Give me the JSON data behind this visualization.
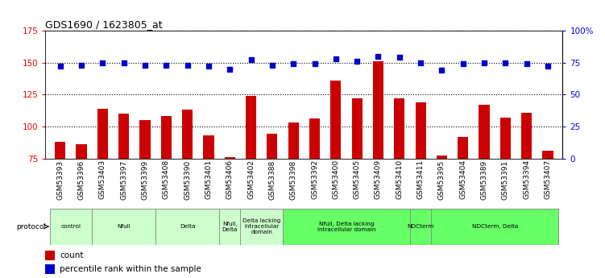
{
  "title": "GDS1690 / 1623805_at",
  "samples": [
    "GSM53393",
    "GSM53396",
    "GSM53403",
    "GSM53397",
    "GSM53399",
    "GSM53408",
    "GSM53390",
    "GSM53401",
    "GSM53406",
    "GSM53402",
    "GSM53388",
    "GSM53398",
    "GSM53392",
    "GSM53400",
    "GSM53405",
    "GSM53409",
    "GSM53410",
    "GSM53411",
    "GSM53395",
    "GSM53404",
    "GSM53389",
    "GSM53391",
    "GSM53394",
    "GSM53407"
  ],
  "counts": [
    88,
    86,
    114,
    110,
    105,
    108,
    113,
    93,
    76,
    124,
    94,
    103,
    106,
    136,
    122,
    151,
    122,
    119,
    77,
    92,
    117,
    107,
    111,
    81
  ],
  "percentiles": [
    72,
    73,
    75,
    75,
    73,
    73,
    73,
    72,
    70,
    77,
    73,
    74,
    74,
    78,
    76,
    80,
    79,
    75,
    69,
    74,
    75,
    75,
    74,
    72
  ],
  "groups": [
    {
      "label": "control",
      "start": 0,
      "end": 2,
      "color": "#ccffcc"
    },
    {
      "label": "Nfull",
      "start": 2,
      "end": 5,
      "color": "#ccffcc"
    },
    {
      "label": "Delta",
      "start": 5,
      "end": 8,
      "color": "#ccffcc"
    },
    {
      "label": "Nfull,\nDelta",
      "start": 8,
      "end": 9,
      "color": "#ccffcc"
    },
    {
      "label": "Delta lacking\nintracellular\ndomain",
      "start": 9,
      "end": 11,
      "color": "#ccffcc"
    },
    {
      "label": "Nfull, Delta lacking\nintracellular domain",
      "start": 11,
      "end": 17,
      "color": "#66ff66"
    },
    {
      "label": "NDCterm",
      "start": 17,
      "end": 18,
      "color": "#66ff66"
    },
    {
      "label": "NDCterm, Delta",
      "start": 18,
      "end": 24,
      "color": "#66ff66"
    }
  ],
  "ylim_left": [
    75,
    175
  ],
  "ylim_right": [
    0,
    100
  ],
  "yticks_left": [
    75,
    100,
    125,
    150,
    175
  ],
  "yticks_right": [
    0,
    25,
    50,
    75,
    100
  ],
  "ytick_labels_right": [
    "0",
    "25",
    "50",
    "75",
    "100%"
  ],
  "bar_color": "#cc0000",
  "dot_color": "#0000cc",
  "grid_color": "#000000",
  "bg_color": "#ffffff",
  "bar_width": 0.5,
  "label_fontsize": 6.5,
  "title_fontsize": 9
}
